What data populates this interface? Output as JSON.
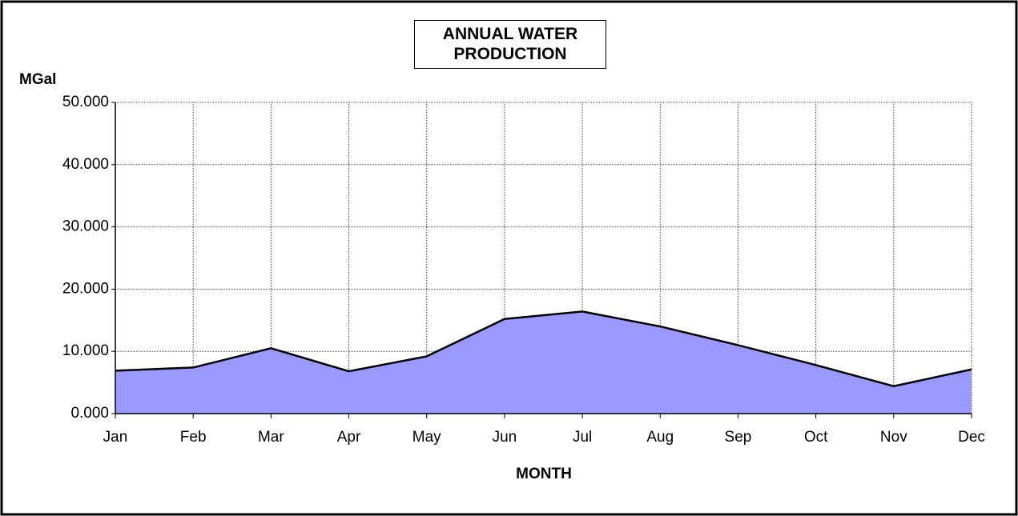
{
  "chart_data": {
    "type": "area",
    "title": "ANNUAL WATER PRODUCTION",
    "y_label": "MGal",
    "x_label": "MONTH",
    "categories": [
      "Jan",
      "Feb",
      "Mar",
      "Apr",
      "May",
      "Jun",
      "Jul",
      "Aug",
      "Sep",
      "Oct",
      "Nov",
      "Dec"
    ],
    "values": [
      6.9,
      7.4,
      10.5,
      6.8,
      9.2,
      15.2,
      16.4,
      14.0,
      11.0,
      7.8,
      4.4,
      7.1
    ],
    "color": "#9999ff",
    "line_color": "#000000",
    "ylim": [
      0,
      50
    ],
    "yticks": [
      {
        "value": 0,
        "label": "0.000"
      },
      {
        "value": 10,
        "label": "10.000"
      },
      {
        "value": 20,
        "label": "20.000"
      },
      {
        "value": 30,
        "label": "30.000"
      },
      {
        "value": 40,
        "label": "40.000"
      },
      {
        "value": 50,
        "label": "50.000"
      }
    ],
    "grid": true
  }
}
